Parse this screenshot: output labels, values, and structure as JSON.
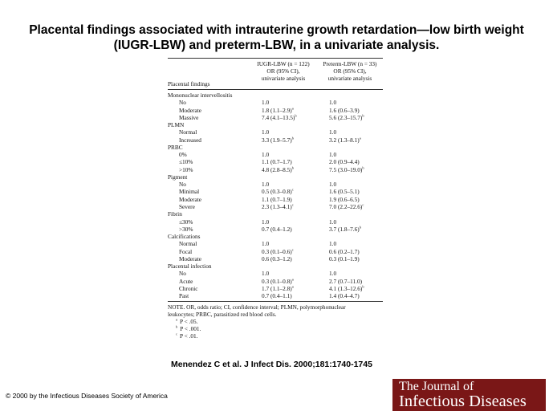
{
  "title": "Placental findings associated with intrauterine growth retardation—low birth weight (IUGR-LBW) and preterm-LBW, in a univariate analysis.",
  "table": {
    "headers": {
      "col1": "Placental findings",
      "col2": [
        "IUGR-LBW (n = 122)",
        "OR (95% CI),",
        "univariate analysis"
      ],
      "col3": [
        "Preterm-LBW (n = 33)",
        "OR (95% CI),",
        "univariate analysis"
      ]
    },
    "rows": [
      {
        "label": "Mononuclear intervellositis",
        "type": "cat",
        "c2": "",
        "c2s": "",
        "c3": "",
        "c3s": ""
      },
      {
        "label": "No",
        "type": "sub",
        "c2": "1.0",
        "c2s": "",
        "c3": "1.0",
        "c3s": ""
      },
      {
        "label": "Moderate",
        "type": "sub",
        "c2": "1.8 (1.1–2.9)",
        "c2s": "a",
        "c3": "1.6 (0.6–3.9)",
        "c3s": ""
      },
      {
        "label": "Massive",
        "type": "sub",
        "c2": "7.4 (4.1–13.5)",
        "c2s": "b",
        "c3": "5.6 (2.3–15.7)",
        "c3s": "b"
      },
      {
        "label": "PLMN",
        "type": "cat",
        "c2": "",
        "c2s": "",
        "c3": "",
        "c3s": ""
      },
      {
        "label": "Normal",
        "type": "sub",
        "c2": "1.0",
        "c2s": "",
        "c3": "1.0",
        "c3s": ""
      },
      {
        "label": "Increased",
        "type": "sub",
        "c2": "3.3 (1.9–5.7)",
        "c2s": "b",
        "c3": "3.2 (1.3–8.1)",
        "c3s": "a"
      },
      {
        "label": "PRBC",
        "type": "cat",
        "c2": "",
        "c2s": "",
        "c3": "",
        "c3s": ""
      },
      {
        "label": "0%",
        "type": "sub",
        "c2": "1.0",
        "c2s": "",
        "c3": "1.0",
        "c3s": ""
      },
      {
        "label": "≤10%",
        "type": "sub",
        "c2": "1.1 (0.7–1.7)",
        "c2s": "",
        "c3": "2.0 (0.9–4.4)",
        "c3s": ""
      },
      {
        "label": ">10%",
        "type": "sub",
        "c2": "4.8 (2.8–8.5)",
        "c2s": "b",
        "c3": "7.5 (3.0–19.0)",
        "c3s": "b"
      },
      {
        "label": "Pigment",
        "type": "cat",
        "c2": "",
        "c2s": "",
        "c3": "",
        "c3s": ""
      },
      {
        "label": "No",
        "type": "sub",
        "c2": "1.0",
        "c2s": "",
        "c3": "1.0",
        "c3s": ""
      },
      {
        "label": "Minimal",
        "type": "sub",
        "c2": "0.5 (0.3–0.8)",
        "c2s": "c",
        "c3": "1.6 (0.5–5.1)",
        "c3s": ""
      },
      {
        "label": "Moderate",
        "type": "sub",
        "c2": "1.1 (0.7–1.9)",
        "c2s": "",
        "c3": "1.9 (0.6–6.5)",
        "c3s": ""
      },
      {
        "label": "Severe",
        "type": "sub",
        "c2": "2.3 (1.3–4.1)",
        "c2s": "c",
        "c3": "7.0 (2.2–22.6)",
        "c3s": "c"
      },
      {
        "label": "Fibrin",
        "type": "cat",
        "c2": "",
        "c2s": "",
        "c3": "",
        "c3s": ""
      },
      {
        "label": "≤30%",
        "type": "sub",
        "c2": "1.0",
        "c2s": "",
        "c3": "1.0",
        "c3s": ""
      },
      {
        "label": ">30%",
        "type": "sub",
        "c2": "0.7 (0.4–1.2)",
        "c2s": "",
        "c3": "3.7 (1.8–7.6)",
        "c3s": "b"
      },
      {
        "label": "Calcifications",
        "type": "cat",
        "c2": "",
        "c2s": "",
        "c3": "",
        "c3s": ""
      },
      {
        "label": "Normal",
        "type": "sub",
        "c2": "1.0",
        "c2s": "",
        "c3": "1.0",
        "c3s": ""
      },
      {
        "label": "Focal",
        "type": "sub",
        "c2": "0.3 (0.1–0.6)",
        "c2s": "c",
        "c3": "0.6 (0.2–1.7)",
        "c3s": ""
      },
      {
        "label": "Moderate",
        "type": "sub",
        "c2": "0.6 (0.3–1.2)",
        "c2s": "",
        "c3": "0.3 (0.1–1.9)",
        "c3s": ""
      },
      {
        "label": "Placental infection",
        "type": "cat",
        "c2": "",
        "c2s": "",
        "c3": "",
        "c3s": ""
      },
      {
        "label": "No",
        "type": "sub",
        "c2": "1.0",
        "c2s": "",
        "c3": "1.0",
        "c3s": ""
      },
      {
        "label": "Acute",
        "type": "sub",
        "c2": "0.3 (0.1–0.8)",
        "c2s": "a",
        "c3": "2.7 (0.7–11.0)",
        "c3s": ""
      },
      {
        "label": "Chronic",
        "type": "sub",
        "c2": "1.7 (1.1–2.8)",
        "c2s": "a",
        "c3": "4.1 (1.3–12.6)",
        "c3s": "b"
      },
      {
        "label": "Past",
        "type": "sub",
        "c2": "0.7 (0.4–1.1)",
        "c2s": "",
        "c3": "1.4 (0.4–4.7)",
        "c3s": ""
      }
    ],
    "note_line1": "NOTE.    OR, odds ratio; CI, confidence interval; PLMN, polymorphonuclear",
    "note_line2": "leukocytes; PRBC, parasitized red blood cells.",
    "footnotes": [
      {
        "mark": "a",
        "text": "P < .05."
      },
      {
        "mark": "b",
        "text": "P < .001."
      },
      {
        "mark": "c",
        "text": "P < .01."
      }
    ]
  },
  "citation": "Menendez C et al. J Infect Dis. 2000;181:1740-1745",
  "copyright": "© 2000 by the Infectious Diseases Society of America",
  "logo": {
    "line1": "The Journal of",
    "line2": "Infectious Diseases",
    "bg_color": "#7a1717"
  }
}
